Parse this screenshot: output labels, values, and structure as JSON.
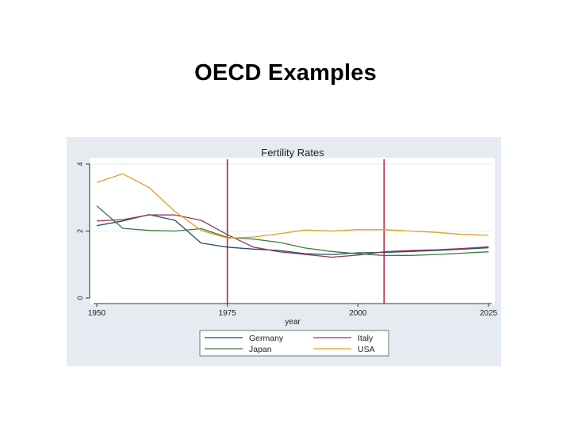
{
  "slide": {
    "title": "OECD Examples"
  },
  "chart_data": {
    "type": "line",
    "title": "Fertility Rates",
    "xlabel": "year",
    "ylabel": "",
    "xlim": [
      1950,
      2025
    ],
    "ylim": [
      0,
      4
    ],
    "x_ticks": [
      1950,
      1975,
      2000,
      2025
    ],
    "y_ticks": [
      0,
      2,
      4
    ],
    "grid": "horizontal",
    "legend_position": "bottom",
    "reference_lines_x": [
      1975,
      2005
    ],
    "reference_line_color": "#b0283a",
    "background": "#e5ebf1",
    "plot_background": "#ffffff",
    "x": [
      1950,
      1955,
      1960,
      1965,
      1970,
      1975,
      1980,
      1985,
      1990,
      1995,
      2000,
      2005,
      2010,
      2015,
      2020,
      2025
    ],
    "series": [
      {
        "name": "Germany",
        "color": "#1f4e6e",
        "values": [
          2.16,
          2.3,
          2.49,
          2.32,
          1.64,
          1.52,
          1.46,
          1.42,
          1.32,
          1.3,
          1.35,
          1.36,
          1.39,
          1.42,
          1.46,
          1.5
        ]
      },
      {
        "name": "Italy",
        "color": "#8e3a55",
        "values": [
          2.3,
          2.34,
          2.48,
          2.48,
          2.32,
          1.89,
          1.52,
          1.38,
          1.3,
          1.22,
          1.28,
          1.38,
          1.42,
          1.44,
          1.48,
          1.53
        ]
      },
      {
        "name": "Japan",
        "color": "#3d7a3a",
        "values": [
          2.75,
          2.08,
          2.02,
          2.0,
          2.07,
          1.81,
          1.76,
          1.66,
          1.49,
          1.39,
          1.32,
          1.27,
          1.27,
          1.3,
          1.34,
          1.38
        ]
      },
      {
        "name": "USA",
        "color": "#e0a020",
        "values": [
          3.45,
          3.71,
          3.3,
          2.58,
          2.02,
          1.79,
          1.82,
          1.92,
          2.03,
          2.0,
          2.04,
          2.04,
          2.0,
          1.96,
          1.9,
          1.87
        ]
      }
    ]
  }
}
